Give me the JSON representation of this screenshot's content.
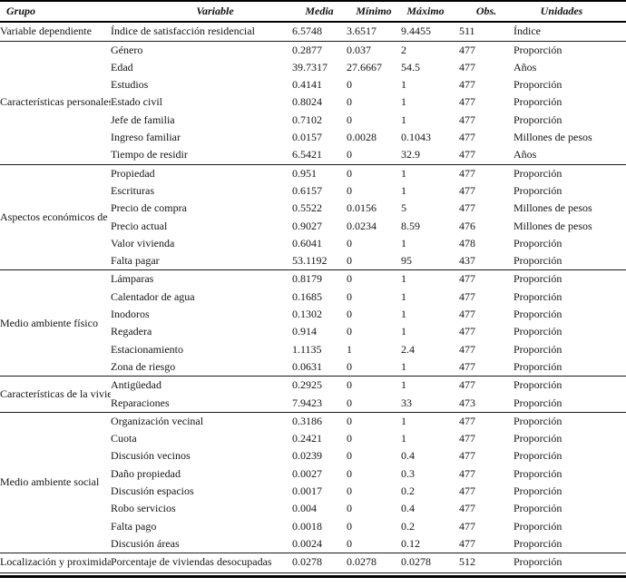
{
  "page": {
    "background_color": "#ffffff",
    "text_color": "#141414",
    "rule_color": "#000000"
  },
  "table": {
    "columns": [
      {
        "key": "grupo",
        "label": "Grupo"
      },
      {
        "key": "variable",
        "label": "Variable"
      },
      {
        "key": "media",
        "label": "Media"
      },
      {
        "key": "minimo",
        "label": "Mínimo"
      },
      {
        "key": "maximo",
        "label": "Máximo"
      },
      {
        "key": "obs",
        "label": "Obs."
      },
      {
        "key": "unidades",
        "label": "Unidades"
      }
    ],
    "groups": [
      {
        "name": "Variable dependiente",
        "rows": [
          {
            "variable": "Índice de satisfacción residencial",
            "media": "6.5748",
            "minimo": "3.6517",
            "maximo": "9.4455",
            "obs": "511",
            "unidades": "Índice"
          }
        ]
      },
      {
        "name": "Características\npersonales",
        "rows": [
          {
            "variable": "Género",
            "media": "0.2877",
            "minimo": "0.037",
            "maximo": "2",
            "obs": "477",
            "unidades": "Proporción"
          },
          {
            "variable": "Edad",
            "media": "39.7317",
            "minimo": "27.6667",
            "maximo": "54.5",
            "obs": "477",
            "unidades": "Años"
          },
          {
            "variable": "Estudios",
            "media": "0.4141",
            "minimo": "0",
            "maximo": "1",
            "obs": "477",
            "unidades": "Proporción"
          },
          {
            "variable": "Estado civil",
            "media": "0.8024",
            "minimo": "0",
            "maximo": "1",
            "obs": "477",
            "unidades": "Proporción"
          },
          {
            "variable": "Jefe de familia",
            "media": "0.7102",
            "minimo": "0",
            "maximo": "1",
            "obs": "477",
            "unidades": "Proporción"
          },
          {
            "variable": "Ingreso familiar",
            "media": "0.0157",
            "minimo": "0.0028",
            "maximo": "0.1043",
            "obs": "477",
            "unidades": "Millones de pesos"
          },
          {
            "variable": "Tiempo de residir",
            "media": "6.5421",
            "minimo": "0",
            "maximo": "32.9",
            "obs": "477",
            "unidades": "Años"
          }
        ]
      },
      {
        "name": "Aspectos económicos\nde la vivienda",
        "rows": [
          {
            "variable": "Propiedad",
            "media": "0.951",
            "minimo": "0",
            "maximo": "1",
            "obs": "477",
            "unidades": "Proporción"
          },
          {
            "variable": "Escrituras",
            "media": "0.6157",
            "minimo": "0",
            "maximo": "1",
            "obs": "477",
            "unidades": "Proporción"
          },
          {
            "variable": "Precio de compra",
            "media": "0.5522",
            "minimo": "0.0156",
            "maximo": "5",
            "obs": "477",
            "unidades": "Millones de pesos"
          },
          {
            "variable": "Precio actual",
            "media": "0.9027",
            "minimo": "0.0234",
            "maximo": "8.59",
            "obs": "476",
            "unidades": "Millones de pesos"
          },
          {
            "variable": "Valor vivienda",
            "media": "0.6041",
            "minimo": "0",
            "maximo": "1",
            "obs": "478",
            "unidades": "Proporción"
          },
          {
            "variable": "Falta pagar",
            "media": "53.1192",
            "minimo": "0",
            "maximo": "95",
            "obs": "437",
            "unidades": "Proporción"
          }
        ]
      },
      {
        "name": "Medio ambiente físico",
        "rows": [
          {
            "variable": "Lámparas",
            "media": "0.8179",
            "minimo": "0",
            "maximo": "1",
            "obs": "477",
            "unidades": "Proporción"
          },
          {
            "variable": "Calentador de agua",
            "media": "0.1685",
            "minimo": "0",
            "maximo": "1",
            "obs": "477",
            "unidades": "Proporción"
          },
          {
            "variable": "Inodoros",
            "media": "0.1302",
            "minimo": "0",
            "maximo": "1",
            "obs": "477",
            "unidades": "Proporción"
          },
          {
            "variable": "Regadera",
            "media": "0.914",
            "minimo": "0",
            "maximo": "1",
            "obs": "477",
            "unidades": "Proporción"
          },
          {
            "variable": "Estacionamiento",
            "media": "1.1135",
            "minimo": "1",
            "maximo": "2.4",
            "obs": "477",
            "unidades": "Proporción"
          },
          {
            "variable": "Zona de riesgo",
            "media": "0.0631",
            "minimo": "0",
            "maximo": "1",
            "obs": "477",
            "unidades": "Proporción"
          }
        ]
      },
      {
        "name": "Características\nde la vivienda",
        "rows": [
          {
            "variable": "Antigüedad",
            "media": "0.2925",
            "minimo": "0",
            "maximo": "1",
            "obs": "477",
            "unidades": "Proporción"
          },
          {
            "variable": "Reparaciones",
            "media": "7.9423",
            "minimo": "0",
            "maximo": "33",
            "obs": "473",
            "unidades": "Proporción"
          }
        ]
      },
      {
        "name": "Medio\nambiente social",
        "rows": [
          {
            "variable": "Organización  vecinal",
            "media": "0.3186",
            "minimo": "0",
            "maximo": "1",
            "obs": "477",
            "unidades": "Proporción"
          },
          {
            "variable": "Cuota",
            "media": "0.2421",
            "minimo": "0",
            "maximo": "1",
            "obs": "477",
            "unidades": "Proporción"
          },
          {
            "variable": "Discusión vecinos",
            "media": "0.0239",
            "minimo": "0",
            "maximo": "0.4",
            "obs": "477",
            "unidades": "Proporción"
          },
          {
            "variable": "Daño propiedad",
            "media": "0.0027",
            "minimo": "0",
            "maximo": "0.3",
            "obs": "477",
            "unidades": "Proporción"
          },
          {
            "variable": "Discusión espacios",
            "media": "0.0017",
            "minimo": "0",
            "maximo": "0.2",
            "obs": "477",
            "unidades": "Proporción"
          },
          {
            "variable": "Robo servicios",
            "media": "0.004",
            "minimo": "0",
            "maximo": "0.4",
            "obs": "477",
            "unidades": "Proporción"
          },
          {
            "variable": "Falta pago",
            "media": "0.0018",
            "minimo": "0",
            "maximo": "0.2",
            "obs": "477",
            "unidades": "Proporción"
          },
          {
            "variable": "Discusión áreas",
            "media": "0.0024",
            "minimo": "0",
            "maximo": "0.12",
            "obs": "477",
            "unidades": "Proporción"
          }
        ]
      },
      {
        "name": "Localización\ny proximidad",
        "rows": [
          {
            "variable": "Porcentaje de viviendas desocupadas",
            "media": "0.0278",
            "minimo": "0.0278",
            "maximo": "0.0278",
            "obs": "512",
            "unidades": "Proporción"
          }
        ]
      }
    ]
  }
}
